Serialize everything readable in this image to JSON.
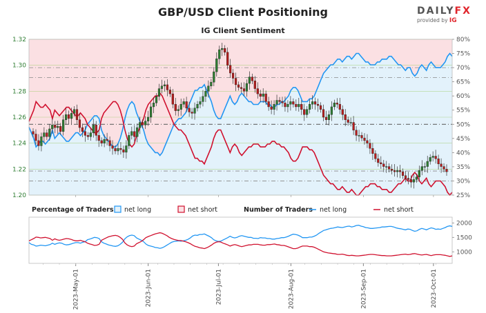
{
  "title": "GBP/USD Client Positioning",
  "subtitle": "IG Client Sentiment",
  "logo": {
    "main": "DAILY",
    "fx": "FX",
    "sub": "provided by",
    "ig": "IG"
  },
  "colors": {
    "long": "#2196f3",
    "short": "#d0102e",
    "bull": "#2e7d32",
    "bear": "#b71c1c",
    "long_zone": "#e3f2fb",
    "short_zone": "#fbe0e3"
  },
  "legend": {
    "pct_title": "Percentage of Traders",
    "pct_long": "net long",
    "pct_short": "net short",
    "num_title": "Number of Traders",
    "num_long": "net long",
    "num_short": "net short"
  },
  "chart_data": [
    {
      "type": "candlestick",
      "ylim_price": [
        1.2,
        1.32
      ],
      "price_ticks": [
        "1.20",
        "1.22",
        "1.24",
        "1.26",
        "1.28",
        "1.30",
        "1.32"
      ],
      "ylim_pct": [
        25,
        80
      ],
      "pct_ticks": [
        "25%",
        "30%",
        "35%",
        "40%",
        "45%",
        "50%",
        "55%",
        "60%",
        "65%",
        "70%",
        "75%",
        "80%"
      ],
      "x_ticks": [
        "2023-May-01",
        "2023-Jun-01",
        "2023-Jul-01",
        "2023-Aug-01",
        "2023-Sep-01",
        "2023-Oct-01"
      ],
      "x_tick_days": [
        20,
        51,
        81,
        112,
        143,
        173
      ],
      "x_range_days": [
        0,
        181
      ],
      "price_close": [
        1.247,
        1.242,
        1.238,
        1.245,
        1.248,
        1.245,
        1.251,
        1.254,
        1.252,
        1.253,
        1.249,
        1.258,
        1.262,
        1.259,
        1.263,
        1.266,
        1.258,
        1.252,
        1.249,
        1.246,
        1.245,
        1.248,
        1.254,
        1.246,
        1.242,
        1.24,
        1.243,
        1.242,
        1.238,
        1.236,
        1.234,
        1.236,
        1.235,
        1.233,
        1.238,
        1.246,
        1.249,
        1.245,
        1.252,
        1.256,
        1.254,
        1.257,
        1.26,
        1.268,
        1.271,
        1.276,
        1.282,
        1.284,
        1.285,
        1.281,
        1.278,
        1.27,
        1.265,
        1.266,
        1.27,
        1.272,
        1.267,
        1.264,
        1.263,
        1.267,
        1.27,
        1.272,
        1.276,
        1.28,
        1.284,
        1.287,
        1.295,
        1.305,
        1.312,
        1.313,
        1.31,
        1.3,
        1.294,
        1.29,
        1.285,
        1.283,
        1.282,
        1.28,
        1.286,
        1.291,
        1.288,
        1.282,
        1.278,
        1.276,
        1.278,
        1.272,
        1.268,
        1.266,
        1.27,
        1.273,
        1.272,
        1.271,
        1.268,
        1.27,
        1.272,
        1.27,
        1.268,
        1.27,
        1.266,
        1.262,
        1.266,
        1.27,
        1.272,
        1.27,
        1.269,
        1.266,
        1.26,
        1.258,
        1.262,
        1.268,
        1.271,
        1.27,
        1.266,
        1.262,
        1.258,
        1.256,
        1.256,
        1.25,
        1.246,
        1.246,
        1.244,
        1.242,
        1.24,
        1.236,
        1.232,
        1.228,
        1.225,
        1.224,
        1.222,
        1.222,
        1.22,
        1.219,
        1.218,
        1.219,
        1.218,
        1.215,
        1.213,
        1.212,
        1.21,
        1.212,
        1.214,
        1.219,
        1.222,
        1.222,
        1.226,
        1.229,
        1.23,
        1.228,
        1.224,
        1.222,
        1.22,
        1.218
      ],
      "series": [
        {
          "name": "net long",
          "values": [
            49,
            47,
            45,
            42,
            43,
            44,
            44,
            43,
            44,
            45,
            48,
            45,
            46,
            47,
            46,
            45,
            44,
            44,
            45,
            46,
            47,
            47,
            46,
            47,
            48,
            50,
            51,
            52,
            53,
            53,
            52,
            48,
            46,
            45,
            44,
            43,
            42,
            42,
            43,
            45,
            48,
            52,
            55,
            57,
            58,
            57,
            54,
            52,
            50,
            48,
            45,
            43,
            42,
            41,
            40,
            40,
            39,
            40,
            42,
            44,
            46,
            48,
            50,
            51,
            52,
            52,
            53,
            54,
            56,
            58,
            60,
            62,
            62,
            63,
            63,
            64,
            62,
            60,
            58,
            55,
            53,
            52,
            52,
            54,
            56,
            58,
            60,
            58,
            57,
            58,
            60,
            61,
            60,
            59,
            58,
            58,
            57,
            57,
            57,
            58,
            58,
            58,
            57,
            57,
            56,
            56,
            57,
            57,
            58,
            58,
            59,
            60,
            62,
            63,
            63,
            62,
            60,
            58,
            58,
            58,
            59,
            59,
            60,
            62,
            64,
            66,
            68,
            69,
            70,
            71,
            71,
            72,
            73,
            73,
            72,
            73,
            74,
            74,
            73,
            74,
            75,
            75,
            74,
            73,
            72,
            72,
            71,
            71,
            71,
            72,
            72,
            73,
            73,
            73,
            74,
            74,
            73,
            72,
            71,
            71,
            70,
            69,
            70,
            70,
            68,
            67,
            68,
            70,
            71,
            70,
            69,
            71,
            72,
            71,
            70,
            70,
            70,
            71,
            72,
            74,
            75,
            74
          ]
        },
        {
          "name": "net short",
          "values": [
            51,
            53,
            55,
            58,
            57,
            56,
            56,
            57,
            56,
            55,
            52,
            55,
            54,
            53,
            54,
            55,
            56,
            56,
            55,
            54,
            53,
            53,
            54,
            53,
            52,
            50,
            49,
            48,
            47,
            47,
            48,
            52,
            54,
            55,
            56,
            57,
            58,
            58,
            57,
            55,
            52,
            48,
            45,
            43,
            42,
            43,
            46,
            48,
            50,
            52,
            55,
            57,
            58,
            59,
            60,
            60,
            61,
            60,
            58,
            56,
            54,
            52,
            50,
            49,
            48,
            48,
            47,
            46,
            44,
            42,
            40,
            38,
            38,
            37,
            37,
            36,
            38,
            40,
            42,
            45,
            47,
            48,
            48,
            46,
            44,
            42,
            40,
            42,
            43,
            42,
            40,
            39,
            40,
            41,
            42,
            42,
            43,
            43,
            43,
            42,
            42,
            42,
            43,
            43,
            44,
            44,
            43,
            43,
            42,
            42,
            41,
            40,
            38,
            37,
            37,
            38,
            40,
            42,
            42,
            42,
            41,
            41,
            40,
            38,
            36,
            34,
            32,
            31,
            30,
            29,
            29,
            28,
            27,
            27,
            28,
            27,
            26,
            26,
            27,
            26,
            25,
            25,
            26,
            27,
            28,
            28,
            29,
            29,
            29,
            28,
            28,
            27,
            27,
            27,
            26,
            26,
            27,
            28,
            29,
            29,
            30,
            31,
            30,
            30,
            32,
            33,
            32,
            30,
            29,
            30,
            31,
            29,
            28,
            29,
            30,
            30,
            30,
            29,
            28,
            26,
            25,
            26
          ]
        }
      ],
      "ref_lines_pct": [
        30,
        33.5,
        50,
        66.5,
        70
      ]
    },
    {
      "type": "line",
      "ylim": [
        600,
        2200
      ],
      "y_ticks": [
        "1000",
        "1500",
        "2000"
      ],
      "series": [
        {
          "name": "net long",
          "values": [
            1320,
            1260,
            1240,
            1200,
            1210,
            1230,
            1220,
            1210,
            1230,
            1250,
            1300,
            1260,
            1290,
            1310,
            1300,
            1260,
            1240,
            1250,
            1270,
            1300,
            1320,
            1320,
            1300,
            1330,
            1350,
            1420,
            1440,
            1470,
            1500,
            1490,
            1460,
            1350,
            1300,
            1270,
            1240,
            1220,
            1200,
            1190,
            1210,
            1260,
            1330,
            1450,
            1520,
            1560,
            1580,
            1560,
            1480,
            1440,
            1400,
            1350,
            1270,
            1220,
            1200,
            1180,
            1150,
            1140,
            1120,
            1140,
            1180,
            1230,
            1280,
            1330,
            1360,
            1370,
            1380,
            1370,
            1380,
            1400,
            1430,
            1480,
            1550,
            1580,
            1570,
            1600,
            1600,
            1620,
            1580,
            1540,
            1490,
            1420,
            1380,
            1360,
            1370,
            1410,
            1450,
            1490,
            1540,
            1500,
            1480,
            1500,
            1540,
            1560,
            1540,
            1520,
            1500,
            1500,
            1470,
            1470,
            1460,
            1490,
            1480,
            1480,
            1460,
            1460,
            1440,
            1440,
            1460,
            1470,
            1490,
            1490,
            1510,
            1540,
            1580,
            1610,
            1600,
            1580,
            1540,
            1490,
            1490,
            1490,
            1510,
            1510,
            1540,
            1580,
            1640,
            1690,
            1740,
            1760,
            1790,
            1810,
            1820,
            1840,
            1860,
            1850,
            1840,
            1860,
            1880,
            1890,
            1860,
            1880,
            1910,
            1920,
            1890,
            1870,
            1840,
            1830,
            1810,
            1810,
            1820,
            1830,
            1840,
            1860,
            1860,
            1870,
            1880,
            1880,
            1860,
            1830,
            1810,
            1800,
            1780,
            1760,
            1790,
            1780,
            1740,
            1710,
            1730,
            1780,
            1810,
            1790,
            1760,
            1800,
            1830,
            1810,
            1780,
            1790,
            1780,
            1810,
            1840,
            1880,
            1900,
            1880
          ]
        },
        {
          "name": "net short",
          "values": [
            1380,
            1420,
            1460,
            1510,
            1500,
            1480,
            1490,
            1500,
            1480,
            1460,
            1400,
            1450,
            1420,
            1400,
            1420,
            1440,
            1460,
            1450,
            1430,
            1400,
            1380,
            1380,
            1400,
            1370,
            1350,
            1300,
            1270,
            1250,
            1220,
            1230,
            1260,
            1400,
            1440,
            1480,
            1520,
            1540,
            1560,
            1570,
            1550,
            1500,
            1430,
            1310,
            1240,
            1200,
            1180,
            1200,
            1280,
            1320,
            1360,
            1420,
            1490,
            1530,
            1560,
            1590,
            1620,
            1640,
            1660,
            1640,
            1600,
            1560,
            1500,
            1460,
            1430,
            1410,
            1390,
            1390,
            1370,
            1350,
            1320,
            1280,
            1230,
            1190,
            1170,
            1140,
            1130,
            1110,
            1140,
            1180,
            1230,
            1290,
            1330,
            1350,
            1340,
            1300,
            1270,
            1240,
            1200,
            1230,
            1250,
            1230,
            1200,
            1180,
            1200,
            1220,
            1240,
            1240,
            1260,
            1260,
            1260,
            1240,
            1230,
            1230,
            1250,
            1250,
            1260,
            1270,
            1250,
            1240,
            1220,
            1220,
            1200,
            1170,
            1140,
            1110,
            1110,
            1130,
            1170,
            1200,
            1200,
            1200,
            1180,
            1180,
            1160,
            1120,
            1080,
            1040,
            1000,
            980,
            960,
            950,
            940,
            930,
            910,
            910,
            920,
            900,
            880,
            870,
            880,
            870,
            860,
            860,
            870,
            880,
            890,
            900,
            910,
            910,
            900,
            890,
            880,
            870,
            870,
            860,
            860,
            860,
            870,
            880,
            890,
            900,
            910,
            920,
            900,
            910,
            930,
            940,
            920,
            900,
            890,
            900,
            910,
            890,
            870,
            890,
            900,
            900,
            900,
            890,
            880,
            860,
            840,
            860
          ]
        }
      ]
    }
  ]
}
